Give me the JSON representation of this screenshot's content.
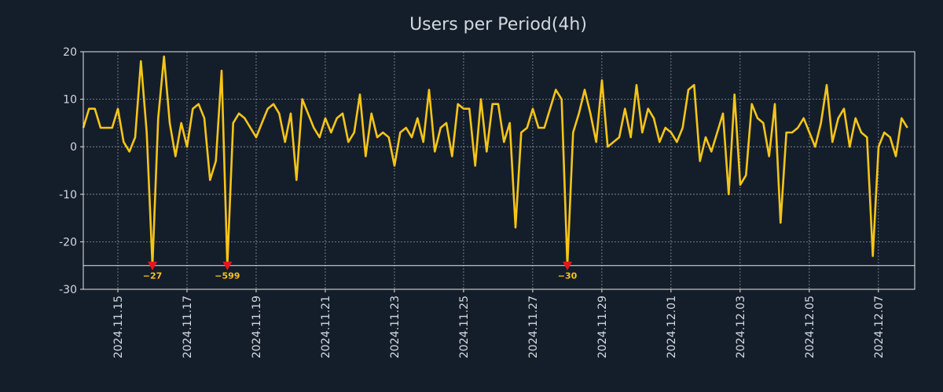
{
  "chart_data": {
    "type": "line",
    "title": "Users per Period(4h)",
    "xlabel": "",
    "ylabel": "",
    "ylim": [
      -30,
      20
    ],
    "yticks": [
      20,
      10,
      0,
      -10,
      -20,
      -30
    ],
    "xlim_days": [
      0,
      24.05
    ],
    "start_date": "2024.11.14",
    "xticks": [
      {
        "day": 1,
        "label": "2024.11.15"
      },
      {
        "day": 3,
        "label": "2024.11.17"
      },
      {
        "day": 5,
        "label": "2024.11.19"
      },
      {
        "day": 7,
        "label": "2024.11.21"
      },
      {
        "day": 9,
        "label": "2024.11.23"
      },
      {
        "day": 11,
        "label": "2024.11.25"
      },
      {
        "day": 13,
        "label": "2024.11.27"
      },
      {
        "day": 15,
        "label": "2024.11.29"
      },
      {
        "day": 17,
        "label": "2024.12.01"
      },
      {
        "day": 19,
        "label": "2024.12.03"
      },
      {
        "day": 21,
        "label": "2024.12.05"
      },
      {
        "day": 23,
        "label": "2024.12.07"
      }
    ],
    "grid": true,
    "threshold": -25,
    "series": [
      {
        "name": "Users per Period(4h)",
        "color": "#f5c518",
        "x_step_days": 0.1667,
        "values": [
          4,
          8,
          8,
          4,
          4,
          4,
          8,
          1,
          -1,
          2,
          18,
          3,
          -25,
          6,
          19,
          5,
          -2,
          5,
          0,
          8,
          9,
          6,
          -7,
          -3,
          16,
          -25,
          5,
          7,
          6,
          4,
          2,
          5,
          8,
          9,
          7,
          1,
          7,
          -7,
          10,
          7,
          4,
          2,
          6,
          3,
          6,
          7,
          1,
          3,
          11,
          -2,
          7,
          2,
          3,
          2,
          -4,
          3,
          4,
          2,
          6,
          1,
          12,
          -1,
          4,
          5,
          -2,
          9,
          8,
          8,
          -4,
          10,
          -1,
          9,
          9,
          1,
          5,
          -17,
          3,
          4,
          8,
          4,
          4,
          8,
          12,
          10,
          -25,
          3,
          7,
          12,
          7,
          1,
          14,
          0,
          1,
          2,
          8,
          2,
          13,
          3,
          8,
          6,
          1,
          4,
          3,
          1,
          4,
          12,
          13,
          -3,
          2,
          -1,
          3,
          7,
          -10,
          11,
          -8,
          -6,
          9,
          6,
          5,
          -2,
          9,
          -16,
          3,
          3,
          4,
          6,
          3,
          0,
          5,
          13,
          1,
          6,
          8,
          0,
          6,
          3,
          2,
          -23,
          0,
          3,
          2,
          -2,
          6,
          4
        ]
      }
    ],
    "anomalies": [
      {
        "index": 12,
        "value": -25,
        "label": "−27"
      },
      {
        "index": 25,
        "value": -25,
        "label": "−599"
      },
      {
        "index": 84,
        "value": -25,
        "label": "−30"
      }
    ],
    "colors": {
      "background": "#141e2b",
      "text": "#d3d8de",
      "axis": "#e6e6e6",
      "grid": "#8a939e",
      "line": "#f5c518",
      "marker": "#e8161c",
      "annotation": "#f5c518"
    }
  }
}
